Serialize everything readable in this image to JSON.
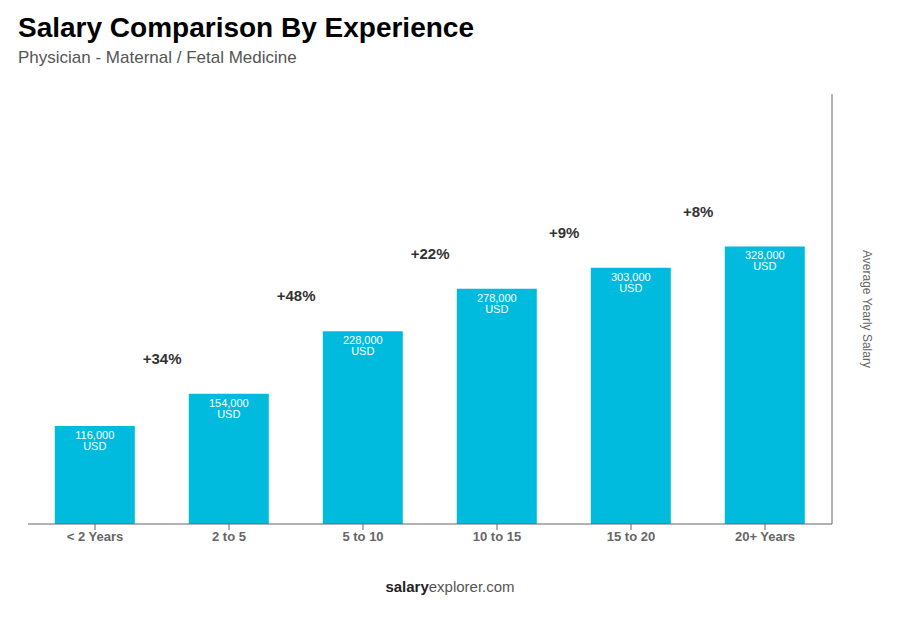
{
  "chart_data": {
    "type": "bar",
    "title": "Salary Comparison By Experience",
    "subtitle": "Physician - Maternal / Fetal Medicine",
    "y_label": "Average Yearly Salary",
    "categories": [
      "< 2 Years",
      "2 to 5",
      "5 to 10",
      "10 to 15",
      "15 to 20",
      "20+ Years"
    ],
    "values": [
      116000,
      154000,
      228000,
      278000,
      303000,
      328000
    ],
    "value_labels": [
      "116,000 USD",
      "154,000 USD",
      "228,000 USD",
      "278,000 USD",
      "303,000 USD",
      "328,000 USD"
    ],
    "data_labels": true,
    "annotations": [
      "+34%",
      "+48%",
      "+22%",
      "+9%",
      "+8%"
    ],
    "watermark": [
      "salary",
      "explorer.com"
    ],
    "color": "#00bbdd",
    "ylim": [
      0,
      508400
    ],
    "tick_labels": "x",
    "grid": false
  }
}
